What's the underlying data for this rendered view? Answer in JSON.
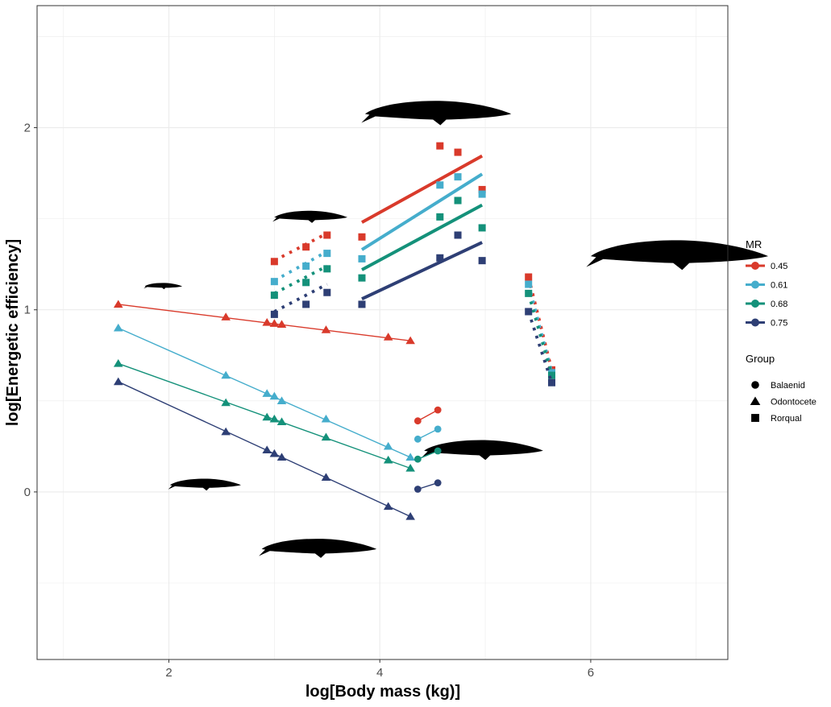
{
  "chart_data": {
    "type": "scatter",
    "xlabel": "log[Body mass (kg)]",
    "ylabel": "log[Energetic efficiency]",
    "xlim": [
      0.75,
      7.3
    ],
    "ylim": [
      -0.92,
      2.67
    ],
    "x_ticks": [
      2,
      4,
      6
    ],
    "y_ticks": [
      0,
      1,
      2
    ],
    "x_tick_labels": [
      "2",
      "4",
      "6"
    ],
    "y_tick_labels": [
      "0",
      "1",
      "2"
    ],
    "grid": true,
    "legend_position": "right",
    "mr_legend": {
      "title": "MR",
      "entries": [
        {
          "label": "0.45",
          "color": "#D93A2B"
        },
        {
          "label": "0.61",
          "color": "#45ADCC"
        },
        {
          "label": "0.68",
          "color": "#14917A"
        },
        {
          "label": "0.75",
          "color": "#2E3F75"
        }
      ]
    },
    "group_legend": {
      "title": "Group",
      "entries": [
        {
          "label": "Balaenid",
          "shape": "circle"
        },
        {
          "label": "Odontocete",
          "shape": "triangle"
        },
        {
          "label": "Rorqual",
          "shape": "square"
        }
      ]
    },
    "series": [
      {
        "name": "Odontocete MR 0.45",
        "group": "Odontocete",
        "mr": "0.45",
        "color": "#D93A2B",
        "fit": "solid-thin",
        "x": [
          1.52,
          2.54,
          2.93,
          3.0,
          3.07,
          3.49,
          4.08,
          4.29
        ],
        "y": [
          1.03,
          0.96,
          0.93,
          0.925,
          0.92,
          0.89,
          0.85,
          0.83
        ],
        "fit_x": [
          1.52,
          4.29
        ],
        "fit_y": [
          1.03,
          0.83
        ]
      },
      {
        "name": "Odontocete MR 0.61",
        "group": "Odontocete",
        "mr": "0.61",
        "color": "#45ADCC",
        "fit": "solid-thin",
        "x": [
          1.52,
          2.54,
          2.93,
          3.0,
          3.07,
          3.49,
          4.08,
          4.29
        ],
        "y": [
          0.9,
          0.64,
          0.54,
          0.525,
          0.5,
          0.4,
          0.25,
          0.19
        ],
        "fit_x": [
          1.52,
          4.29
        ],
        "fit_y": [
          0.9,
          0.19
        ]
      },
      {
        "name": "Odontocete MR 0.68",
        "group": "Odontocete",
        "mr": "0.68",
        "color": "#14917A",
        "fit": "solid-thin",
        "x": [
          1.52,
          2.54,
          2.93,
          3.0,
          3.07,
          3.49,
          4.08,
          4.29
        ],
        "y": [
          0.705,
          0.49,
          0.41,
          0.4,
          0.385,
          0.3,
          0.175,
          0.13
        ],
        "fit_x": [
          1.52,
          4.29
        ],
        "fit_y": [
          0.705,
          0.13
        ]
      },
      {
        "name": "Odontocete MR 0.75",
        "group": "Odontocete",
        "mr": "0.75",
        "color": "#2E3F75",
        "fit": "solid-thin",
        "x": [
          1.52,
          2.54,
          2.93,
          3.0,
          3.07,
          3.49,
          4.08,
          4.29
        ],
        "y": [
          0.605,
          0.33,
          0.23,
          0.21,
          0.19,
          0.08,
          -0.08,
          -0.135
        ],
        "fit_x": [
          1.52,
          4.29
        ],
        "fit_y": [
          0.605,
          -0.135
        ]
      },
      {
        "name": "Balaenid MR 0.45",
        "group": "Balaenid",
        "mr": "0.45",
        "color": "#D93A2B",
        "fit": "solid-thin",
        "x": [
          4.36,
          4.55
        ],
        "y": [
          0.39,
          0.45
        ],
        "fit_x": [
          4.36,
          4.55
        ],
        "fit_y": [
          0.39,
          0.45
        ]
      },
      {
        "name": "Balaenid MR 0.61",
        "group": "Balaenid",
        "mr": "0.61",
        "color": "#45ADCC",
        "fit": "solid-thin",
        "x": [
          4.36,
          4.55
        ],
        "y": [
          0.29,
          0.345
        ],
        "fit_x": [
          4.36,
          4.55
        ],
        "fit_y": [
          0.29,
          0.345
        ]
      },
      {
        "name": "Balaenid MR 0.68",
        "group": "Balaenid",
        "mr": "0.68",
        "color": "#14917A",
        "fit": "solid-thin",
        "x": [
          4.36,
          4.55
        ],
        "y": [
          0.18,
          0.225
        ],
        "fit_x": [
          4.36,
          4.55
        ],
        "fit_y": [
          0.18,
          0.225
        ]
      },
      {
        "name": "Balaenid MR 0.75",
        "group": "Balaenid",
        "mr": "0.75",
        "color": "#2E3F75",
        "fit": "solid-thin",
        "x": [
          4.36,
          4.55
        ],
        "y": [
          0.015,
          0.05
        ],
        "fit_x": [
          4.36,
          4.55
        ],
        "fit_y": [
          0.015,
          0.05
        ]
      },
      {
        "name": "Rorqual small MR 0.45",
        "group": "Rorqual",
        "mr": "0.45",
        "color": "#D93A2B",
        "fit": "dotted",
        "x": [
          3.0,
          3.3,
          3.5
        ],
        "y": [
          1.265,
          1.345,
          1.41
        ],
        "fit_x": [
          3.0,
          3.5
        ],
        "fit_y": [
          1.27,
          1.42
        ]
      },
      {
        "name": "Rorqual small MR 0.61",
        "group": "Rorqual",
        "mr": "0.61",
        "color": "#45ADCC",
        "fit": "dotted",
        "x": [
          3.0,
          3.3,
          3.5
        ],
        "y": [
          1.155,
          1.24,
          1.31
        ],
        "fit_x": [
          3.0,
          3.5
        ],
        "fit_y": [
          1.16,
          1.32
        ]
      },
      {
        "name": "Rorqual small MR 0.68",
        "group": "Rorqual",
        "mr": "0.68",
        "color": "#14917A",
        "fit": "dotted",
        "x": [
          3.0,
          3.3,
          3.5
        ],
        "y": [
          1.08,
          1.15,
          1.225
        ],
        "fit_x": [
          3.0,
          3.5
        ],
        "fit_y": [
          1.09,
          1.24
        ]
      },
      {
        "name": "Rorqual small MR 0.75",
        "group": "Rorqual",
        "mr": "0.75",
        "color": "#2E3F75",
        "fit": "dotted",
        "x": [
          3.0,
          3.3,
          3.5
        ],
        "y": [
          0.975,
          1.03,
          1.095
        ],
        "fit_x": [
          3.0,
          3.5
        ],
        "fit_y": [
          0.99,
          1.14
        ]
      },
      {
        "name": "Rorqual mid MR 0.45",
        "group": "Rorqual",
        "mr": "0.45",
        "color": "#D93A2B",
        "fit": "solid-thick",
        "x": [
          3.83,
          4.57,
          4.74,
          4.97
        ],
        "y": [
          1.4,
          1.9,
          1.865,
          1.66
        ],
        "fit_x": [
          3.83,
          4.97
        ],
        "fit_y": [
          1.48,
          1.845
        ]
      },
      {
        "name": "Rorqual mid MR 0.61",
        "group": "Rorqual",
        "mr": "0.61",
        "color": "#45ADCC",
        "fit": "solid-thick",
        "x": [
          3.83,
          4.57,
          4.74,
          4.97
        ],
        "y": [
          1.28,
          1.685,
          1.73,
          1.635
        ],
        "fit_x": [
          3.83,
          4.97
        ],
        "fit_y": [
          1.33,
          1.745
        ]
      },
      {
        "name": "Rorqual mid MR 0.68",
        "group": "Rorqual",
        "mr": "0.68",
        "color": "#14917A",
        "fit": "solid-thick",
        "x": [
          3.83,
          4.57,
          4.74,
          4.97
        ],
        "y": [
          1.175,
          1.51,
          1.6,
          1.45
        ],
        "fit_x": [
          3.83,
          4.97
        ],
        "fit_y": [
          1.22,
          1.575
        ]
      },
      {
        "name": "Rorqual mid MR 0.75",
        "group": "Rorqual",
        "mr": "0.75",
        "color": "#2E3F75",
        "fit": "solid-thick",
        "x": [
          3.83,
          4.57,
          4.74,
          4.97
        ],
        "y": [
          1.03,
          1.285,
          1.41,
          1.27
        ],
        "fit_x": [
          3.83,
          4.97
        ],
        "fit_y": [
          1.06,
          1.37
        ]
      },
      {
        "name": "Rorqual large MR 0.45",
        "group": "Rorqual",
        "mr": "0.45",
        "color": "#D93A2B",
        "fit": "dotted",
        "x": [
          5.41,
          5.63
        ],
        "y": [
          1.18,
          0.67
        ],
        "fit_x": [
          5.41,
          5.63
        ],
        "fit_y": [
          1.18,
          0.67
        ]
      },
      {
        "name": "Rorqual large MR 0.61",
        "group": "Rorqual",
        "mr": "0.61",
        "color": "#45ADCC",
        "fit": "dotted",
        "x": [
          5.41,
          5.63
        ],
        "y": [
          1.14,
          0.655
        ],
        "fit_x": [
          5.41,
          5.63
        ],
        "fit_y": [
          1.14,
          0.655
        ]
      },
      {
        "name": "Rorqual large MR 0.68",
        "group": "Rorqual",
        "mr": "0.68",
        "color": "#14917A",
        "fit": "dotted",
        "x": [
          5.41,
          5.63
        ],
        "y": [
          1.09,
          0.64
        ],
        "fit_x": [
          5.41,
          5.63
        ],
        "fit_y": [
          1.09,
          0.64
        ]
      },
      {
        "name": "Rorqual large MR 0.75",
        "group": "Rorqual",
        "mr": "0.75",
        "color": "#2E3F75",
        "fit": "dotted",
        "x": [
          5.41,
          5.63
        ],
        "y": [
          0.99,
          0.6
        ],
        "fit_x": [
          5.41,
          5.63
        ],
        "fit_y": [
          0.99,
          0.6
        ]
      }
    ],
    "silhouettes": [
      {
        "name": "porpoise",
        "x": 1.95,
        "y": 1.13,
        "size": 0.18
      },
      {
        "name": "orca",
        "x": 2.35,
        "y": 0.04,
        "size": 0.34
      },
      {
        "name": "minke",
        "x": 3.35,
        "y": 1.51,
        "size": 0.35
      },
      {
        "name": "sperm",
        "x": 3.43,
        "y": -0.31,
        "size": 0.55
      },
      {
        "name": "fin",
        "x": 4.56,
        "y": 2.08,
        "size": 0.7
      },
      {
        "name": "right",
        "x": 4.99,
        "y": 0.23,
        "size": 0.57
      },
      {
        "name": "blue",
        "x": 6.85,
        "y": 1.3,
        "size": 0.85
      }
    ]
  }
}
